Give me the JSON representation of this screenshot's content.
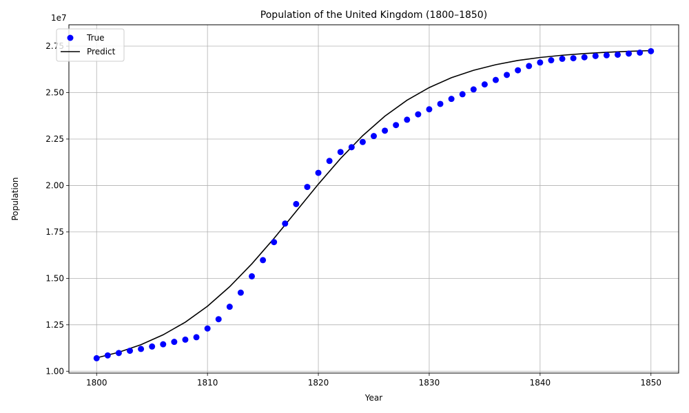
{
  "chart_data": {
    "type": "scatter",
    "title": "Population of the United Kingdom (1800–1850)",
    "xlabel": "Year",
    "ylabel": "Population",
    "y_offset_label": "1e7",
    "xlim": [
      1797.5,
      1852.5
    ],
    "ylim": [
      9900000,
      28650000
    ],
    "x_ticks": [
      1800,
      1810,
      1820,
      1830,
      1840,
      1850
    ],
    "x_tick_labels": [
      "1800",
      "1810",
      "1820",
      "1830",
      "1840",
      "1850"
    ],
    "y_ticks": [
      10000000,
      12500000,
      15000000,
      17500000,
      20000000,
      22500000,
      25000000,
      27500000
    ],
    "y_tick_labels": [
      "1.00",
      "1.25",
      "1.50",
      "1.75",
      "2.00",
      "2.25",
      "2.50",
      "2.75"
    ],
    "grid": true,
    "legend_position": "top-left",
    "series": [
      {
        "name": "True",
        "kind": "scatter",
        "color": "#0000ff",
        "x": [
          1800,
          1801,
          1802,
          1803,
          1804,
          1805,
          1806,
          1807,
          1808,
          1809,
          1810,
          1811,
          1812,
          1813,
          1814,
          1815,
          1816,
          1817,
          1818,
          1819,
          1820,
          1821,
          1822,
          1823,
          1824,
          1825,
          1826,
          1827,
          1828,
          1829,
          1830,
          1831,
          1832,
          1833,
          1834,
          1835,
          1836,
          1837,
          1838,
          1839,
          1840,
          1841,
          1842,
          1843,
          1844,
          1845,
          1846,
          1847,
          1848,
          1849,
          1850
        ],
        "y": [
          10700000,
          10850000,
          10980000,
          11100000,
          11200000,
          11330000,
          11450000,
          11580000,
          11700000,
          11830000,
          12300000,
          12800000,
          13470000,
          14230000,
          15110000,
          15980000,
          16950000,
          17950000,
          19000000,
          19920000,
          20680000,
          21320000,
          21800000,
          22060000,
          22340000,
          22660000,
          22950000,
          23250000,
          23540000,
          23830000,
          24100000,
          24390000,
          24660000,
          24910000,
          25170000,
          25440000,
          25680000,
          25950000,
          26200000,
          26430000,
          26620000,
          26740000,
          26820000,
          26850000,
          26900000,
          26970000,
          27010000,
          27040000,
          27100000,
          27150000,
          27230000
        ]
      },
      {
        "name": "Predict",
        "kind": "line",
        "color": "#000000",
        "x": [
          1800,
          1802,
          1804,
          1806,
          1808,
          1810,
          1812,
          1814,
          1816,
          1818,
          1820,
          1822,
          1824,
          1826,
          1828,
          1830,
          1832,
          1834,
          1836,
          1838,
          1840,
          1842,
          1844,
          1846,
          1848,
          1850
        ],
        "y": [
          10720000,
          11020000,
          11430000,
          11960000,
          12640000,
          13500000,
          14550000,
          15780000,
          17150000,
          18610000,
          20070000,
          21450000,
          22680000,
          23730000,
          24590000,
          25270000,
          25800000,
          26200000,
          26500000,
          26730000,
          26890000,
          27010000,
          27100000,
          27170000,
          27220000,
          27260000
        ]
      }
    ]
  }
}
